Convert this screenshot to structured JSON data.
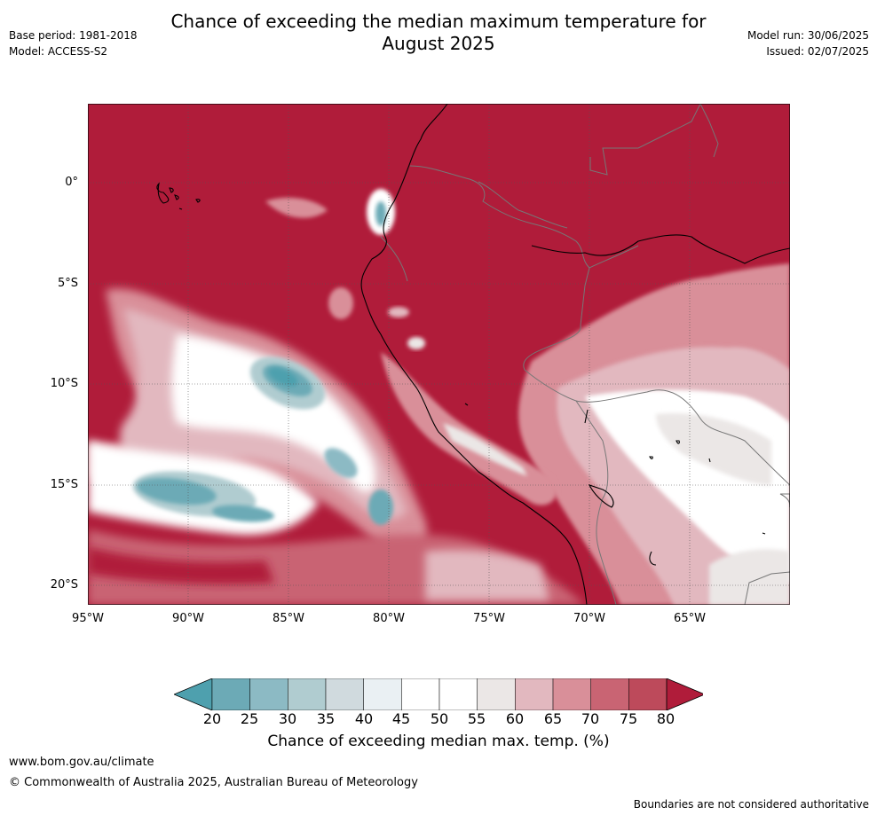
{
  "title": {
    "line1": "Chance of exceeding the median maximum temperature for",
    "line2": "August 2025"
  },
  "meta_left": {
    "base_period": "Base period: 1981-2018",
    "model": "Model: ACCESS-S2"
  },
  "meta_right": {
    "model_run": "Model run: 30/06/2025",
    "issued": "Issued: 02/07/2025"
  },
  "map": {
    "lat_labels": [
      "0°",
      "5°S",
      "10°S",
      "15°S",
      "20°S"
    ],
    "lon_labels": [
      "95°W",
      "90°W",
      "85°W",
      "80°W",
      "75°W",
      "70°W",
      "65°W"
    ],
    "background_color": "#b01c3a",
    "gridlines": true
  },
  "colorbar": {
    "ticks": [
      "20",
      "25",
      "30",
      "35",
      "40",
      "45",
      "50",
      "55",
      "60",
      "65",
      "70",
      "75",
      "80"
    ],
    "colors": [
      "#4ea0ae",
      "#6caab6",
      "#8cbac4",
      "#b0ccd0",
      "#d0dade",
      "#eaf0f3",
      "#ffffff",
      "#ffffff",
      "#ebe7e6",
      "#e2b8bf",
      "#d98f99",
      "#c96473",
      "#bd4a5b",
      "#b01c3a"
    ],
    "label": "Chance of exceeding median max. temp. (%)"
  },
  "footer": {
    "url": "www.bom.gov.au/climate",
    "copyright": "© Commonwealth of Australia 2025, Australian Bureau of Meteorology",
    "disclaimer": "Boundaries are not considered authoritative"
  }
}
